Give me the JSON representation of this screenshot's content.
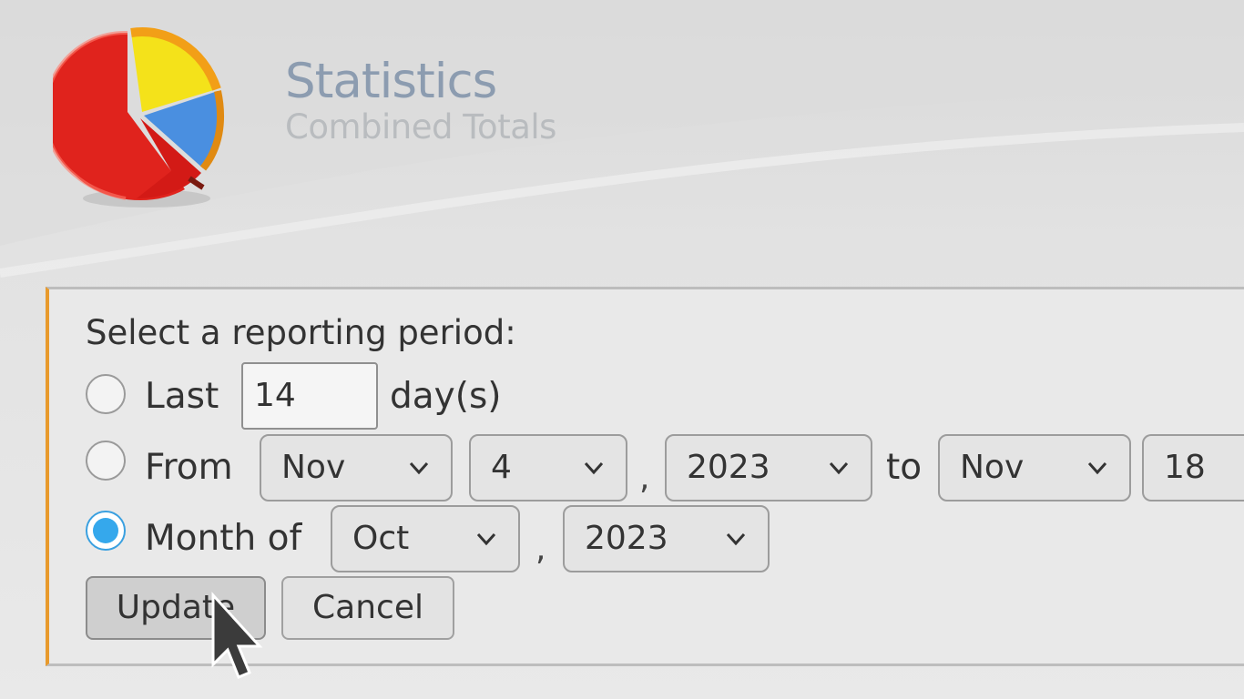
{
  "header": {
    "title": "Statistics",
    "subtitle": "Combined Totals",
    "logo_icon": "pie-chart-icon"
  },
  "form": {
    "prompt": "Select a reporting period:",
    "selected_option": "month",
    "last": {
      "label": "Last",
      "days_value": "14",
      "suffix": "day(s)"
    },
    "from": {
      "label": "From",
      "start_month": "Nov",
      "start_day": "4",
      "comma": ",",
      "start_year": "2023",
      "to_label": "to",
      "end_month": "Nov",
      "end_day": "18"
    },
    "month_of": {
      "label": "Month of",
      "month": "Oct",
      "comma": ",",
      "year": "2023"
    },
    "buttons": {
      "update": "Update",
      "cancel": "Cancel"
    }
  },
  "colors": {
    "accent_border": "#e89a2c",
    "radio_selected": "#35a8ec",
    "title_text": "#8c9cb0",
    "subtitle_text": "#b9bcbf"
  }
}
